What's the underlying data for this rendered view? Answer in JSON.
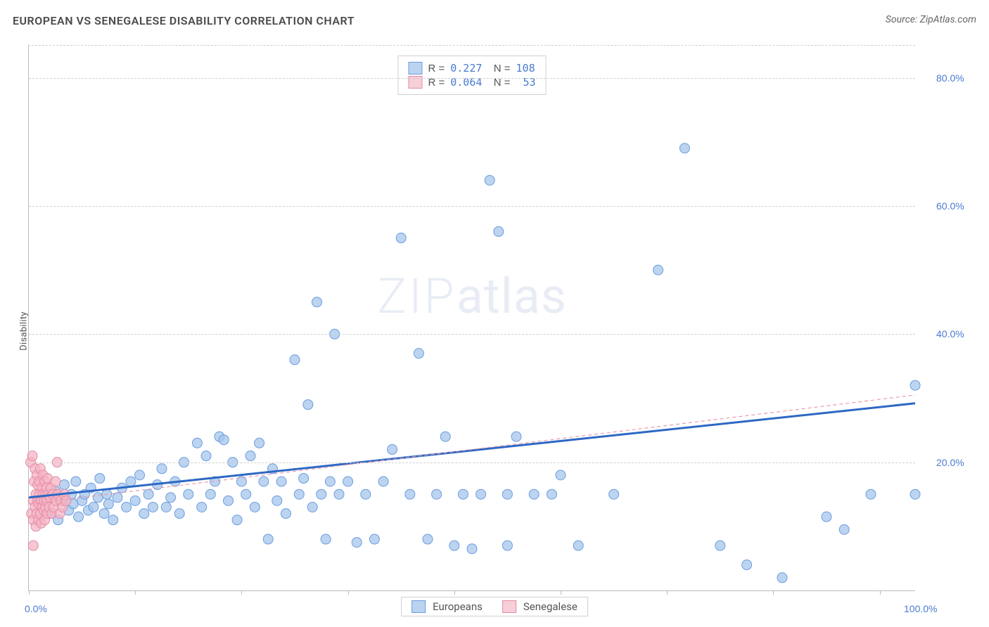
{
  "title": "EUROPEAN VS SENEGALESE DISABILITY CORRELATION CHART",
  "source": "Source: ZipAtlas.com",
  "y_axis_label": "Disability",
  "watermark_prefix": "ZIP",
  "watermark_suffix": "atlas",
  "chart": {
    "type": "scatter",
    "xlim": [
      0,
      100
    ],
    "ylim": [
      0,
      85
    ],
    "y_ticks": [
      20,
      40,
      60,
      80
    ],
    "y_tick_labels": [
      "20.0%",
      "40.0%",
      "60.0%",
      "80.0%"
    ],
    "x_tick_positions": [
      0,
      12,
      24,
      36,
      48,
      60,
      72,
      84,
      96
    ],
    "x_label_min": "0.0%",
    "x_label_max": "100.0%",
    "background_color": "#ffffff",
    "grid_color": "#d0d0d0",
    "grid_dash": "4 3",
    "axis_color": "#bcbcbc",
    "tick_color": "#4a7bd0",
    "tick_fontsize": 14,
    "marker_radius": 7,
    "marker_stroke_width": 1,
    "legend_stats": {
      "border_color": "#d0d0d0",
      "bg": "#ffffff",
      "rows": [
        {
          "swatch_fill": "#bcd3f0",
          "swatch_stroke": "#6a9de0",
          "R": "0.227",
          "N": "108"
        },
        {
          "swatch_fill": "#f6cfd8",
          "swatch_stroke": "#e58ba4",
          "R": "0.064",
          "N": "53"
        }
      ]
    },
    "legend_series": {
      "items": [
        {
          "swatch_fill": "#bcd3f0",
          "swatch_stroke": "#6a9de0",
          "label": "Europeans"
        },
        {
          "swatch_fill": "#f6cfd8",
          "swatch_stroke": "#e58ba4",
          "label": "Senegalese"
        }
      ]
    },
    "series": [
      {
        "name": "Europeans",
        "marker_fill": "rgba(165,198,235,0.75)",
        "marker_stroke": "#6a9de0",
        "regression": {
          "x1": 0,
          "y1": 14.5,
          "x2": 100,
          "y2": 29.2,
          "color": "#2d68c4",
          "width": 3,
          "dash": "none"
        },
        "points": [
          [
            1.5,
            13.0
          ],
          [
            2.0,
            14.5
          ],
          [
            2.5,
            12.0
          ],
          [
            3.0,
            15.5
          ],
          [
            3.3,
            11.0
          ],
          [
            3.8,
            14.0
          ],
          [
            4.0,
            16.5
          ],
          [
            4.5,
            12.5
          ],
          [
            4.8,
            15.0
          ],
          [
            5.0,
            13.5
          ],
          [
            5.3,
            17.0
          ],
          [
            5.6,
            11.5
          ],
          [
            6.0,
            14.0
          ],
          [
            6.3,
            15.0
          ],
          [
            6.7,
            12.5
          ],
          [
            7.0,
            16.0
          ],
          [
            7.3,
            13.0
          ],
          [
            7.8,
            14.5
          ],
          [
            8.0,
            17.5
          ],
          [
            8.5,
            12.0
          ],
          [
            8.8,
            15.0
          ],
          [
            9.0,
            13.5
          ],
          [
            9.5,
            11.0
          ],
          [
            10.0,
            14.5
          ],
          [
            10.5,
            16.0
          ],
          [
            11.0,
            13.0
          ],
          [
            11.5,
            17.0
          ],
          [
            12.0,
            14.0
          ],
          [
            12.5,
            18.0
          ],
          [
            13.0,
            12.0
          ],
          [
            13.5,
            15.0
          ],
          [
            14.0,
            13.0
          ],
          [
            14.5,
            16.5
          ],
          [
            15.0,
            19.0
          ],
          [
            15.5,
            13.0
          ],
          [
            16.0,
            14.5
          ],
          [
            16.5,
            17.0
          ],
          [
            17.0,
            12.0
          ],
          [
            17.5,
            20.0
          ],
          [
            18.0,
            15.0
          ],
          [
            19.0,
            23.0
          ],
          [
            19.5,
            13.0
          ],
          [
            20.0,
            21.0
          ],
          [
            20.5,
            15.0
          ],
          [
            21.0,
            17.0
          ],
          [
            21.5,
            24.0
          ],
          [
            22.0,
            23.5
          ],
          [
            22.5,
            14.0
          ],
          [
            23.0,
            20.0
          ],
          [
            23.5,
            11.0
          ],
          [
            24.0,
            17.0
          ],
          [
            24.5,
            15.0
          ],
          [
            25.0,
            21.0
          ],
          [
            25.5,
            13.0
          ],
          [
            26.0,
            23.0
          ],
          [
            26.5,
            17.0
          ],
          [
            27.0,
            8.0
          ],
          [
            27.5,
            19.0
          ],
          [
            28.0,
            14.0
          ],
          [
            28.5,
            17.0
          ],
          [
            29.0,
            12.0
          ],
          [
            30.0,
            36.0
          ],
          [
            30.5,
            15.0
          ],
          [
            31.0,
            17.5
          ],
          [
            31.5,
            29.0
          ],
          [
            32.0,
            13.0
          ],
          [
            32.5,
            45.0
          ],
          [
            33.0,
            15.0
          ],
          [
            33.5,
            8.0
          ],
          [
            34.0,
            17.0
          ],
          [
            34.5,
            40.0
          ],
          [
            35.0,
            15.0
          ],
          [
            36.0,
            17.0
          ],
          [
            37.0,
            7.5
          ],
          [
            38.0,
            15.0
          ],
          [
            39.0,
            8.0
          ],
          [
            40.0,
            17.0
          ],
          [
            41.0,
            22.0
          ],
          [
            42.0,
            55.0
          ],
          [
            43.0,
            15.0
          ],
          [
            44.0,
            37.0
          ],
          [
            45.0,
            8.0
          ],
          [
            46.0,
            15.0
          ],
          [
            47.0,
            24.0
          ],
          [
            48.0,
            7.0
          ],
          [
            49.0,
            15.0
          ],
          [
            50.0,
            6.5
          ],
          [
            51.0,
            15.0
          ],
          [
            52.0,
            64.0
          ],
          [
            53.0,
            56.0
          ],
          [
            54.0,
            7.0
          ],
          [
            55.0,
            24.0
          ],
          [
            57.0,
            15.0
          ],
          [
            59.0,
            15.0
          ],
          [
            60.0,
            18.0
          ],
          [
            62.0,
            7.0
          ],
          [
            66.0,
            15.0
          ],
          [
            71.0,
            50.0
          ],
          [
            74.0,
            69.0
          ],
          [
            78.0,
            7.0
          ],
          [
            81.0,
            4.0
          ],
          [
            85.0,
            2.0
          ],
          [
            90.0,
            11.5
          ],
          [
            92.0,
            9.5
          ],
          [
            95.0,
            15.0
          ],
          [
            100.0,
            15.0
          ],
          [
            100.0,
            32.0
          ],
          [
            54.0,
            15.0
          ]
        ]
      },
      {
        "name": "Senegalese",
        "marker_fill": "rgba(244,182,198,0.75)",
        "marker_stroke": "#e58ba4",
        "regression": {
          "x1": 0,
          "y1": 13.5,
          "x2": 100,
          "y2": 30.5,
          "color": "#e89aad",
          "width": 1.2,
          "dash": "5 4"
        },
        "points": [
          [
            0.2,
            20.0
          ],
          [
            0.3,
            12.0
          ],
          [
            0.4,
            21.0
          ],
          [
            0.5,
            14.0
          ],
          [
            0.5,
            11.0
          ],
          [
            0.6,
            17.0
          ],
          [
            0.7,
            13.0
          ],
          [
            0.7,
            19.0
          ],
          [
            0.8,
            10.0
          ],
          [
            0.8,
            15.0
          ],
          [
            0.9,
            18.0
          ],
          [
            0.9,
            12.0
          ],
          [
            1.0,
            14.0
          ],
          [
            1.0,
            16.5
          ],
          [
            1.1,
            11.0
          ],
          [
            1.1,
            13.5
          ],
          [
            1.2,
            17.0
          ],
          [
            1.2,
            15.0
          ],
          [
            1.3,
            12.0
          ],
          [
            1.3,
            19.0
          ],
          [
            1.4,
            14.0
          ],
          [
            1.4,
            10.5
          ],
          [
            1.5,
            16.0
          ],
          [
            1.5,
            13.0
          ],
          [
            1.6,
            15.0
          ],
          [
            1.6,
            18.0
          ],
          [
            1.7,
            12.5
          ],
          [
            1.7,
            14.0
          ],
          [
            1.8,
            17.0
          ],
          [
            1.8,
            11.0
          ],
          [
            1.9,
            15.0
          ],
          [
            1.9,
            13.0
          ],
          [
            2.0,
            16.0
          ],
          [
            2.0,
            14.0
          ],
          [
            2.1,
            12.0
          ],
          [
            2.1,
            17.5
          ],
          [
            2.2,
            15.0
          ],
          [
            2.3,
            13.0
          ],
          [
            2.4,
            14.5
          ],
          [
            2.5,
            16.0
          ],
          [
            2.6,
            12.0
          ],
          [
            2.7,
            15.0
          ],
          [
            2.8,
            13.0
          ],
          [
            3.0,
            17.0
          ],
          [
            3.1,
            14.0
          ],
          [
            3.2,
            20.0
          ],
          [
            3.3,
            15.0
          ],
          [
            3.5,
            12.0
          ],
          [
            3.6,
            14.0
          ],
          [
            3.8,
            13.0
          ],
          [
            4.0,
            15.0
          ],
          [
            4.2,
            14.0
          ],
          [
            0.5,
            7.0
          ]
        ]
      }
    ]
  }
}
